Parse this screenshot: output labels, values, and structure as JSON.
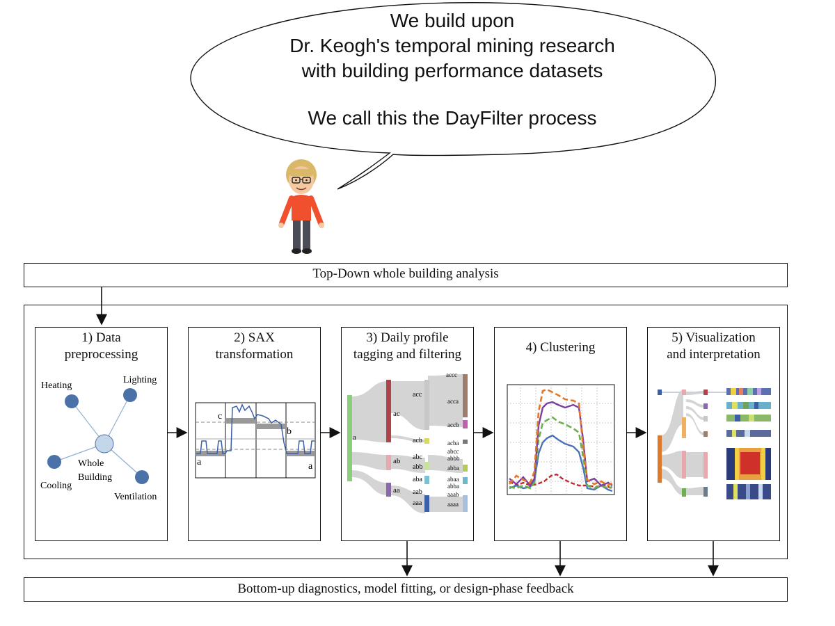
{
  "speech_bubble": {
    "lines": [
      "We build upon",
      "Dr. Keogh's temporal mining research",
      "with building performance datasets",
      "We call this the DayFilter process"
    ]
  },
  "top_bar": {
    "label": "Top-Down whole building analysis"
  },
  "bottom_bar": {
    "label": "Bottom-up diagnostics, model fitting, or design-phase feedback"
  },
  "steps": [
    {
      "title_lines": [
        "1) Data",
        "preprocessing"
      ]
    },
    {
      "title_lines": [
        "2) SAX",
        "transformation"
      ]
    },
    {
      "title_lines": [
        "3) Daily profile",
        "tagging and filtering"
      ]
    },
    {
      "title_lines": [
        "4) Clustering"
      ]
    },
    {
      "title_lines": [
        "5) Visualization",
        "and interpretation"
      ]
    }
  ],
  "preprocessing_graph": {
    "center": "Whole\nBuilding",
    "nodes": [
      "Heating",
      "Lighting",
      "Cooling",
      "Ventilation"
    ],
    "node_color": "#4a72a8",
    "center_color": "#c4d6ea"
  },
  "sax": {
    "letters": [
      "c",
      "b",
      "a",
      "a"
    ]
  },
  "tagging": {
    "level1": [
      "a"
    ],
    "level2": [
      "ac",
      "ab",
      "aa"
    ],
    "level3": [
      "acc",
      "acb",
      "abc",
      "abb",
      "aba",
      "aab",
      "aaa"
    ],
    "level4": [
      "accc",
      "acca",
      "accb",
      "acba",
      "abcc",
      "abbb",
      "abba",
      "abaa",
      "abba",
      "aaab",
      "aaaa"
    ]
  },
  "colors": {
    "line": "#111111",
    "series_blue": "#4a72b8",
    "series_orange": "#e0782a",
    "series_purple": "#7b3fa0",
    "series_green": "#6ab04c",
    "series_red": "#c0282d",
    "flow_gray": "#d4d4d4"
  }
}
